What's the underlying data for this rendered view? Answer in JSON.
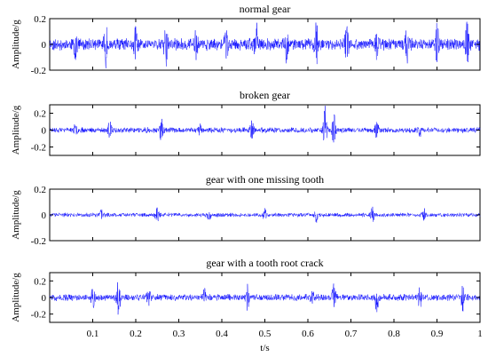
{
  "chart_data": [
    {
      "type": "line",
      "title": "normal gear",
      "xlabel": "",
      "ylabel": "Amplitude/g",
      "xlim": [
        0,
        1
      ],
      "ylim": [
        -0.2,
        0.2
      ],
      "yticks": [
        "0.2",
        "0",
        "-0.2"
      ],
      "xticks": [],
      "color": "#0000ff",
      "signal": {
        "samples": 1600,
        "base_amplitude": 0.05,
        "seed": 11,
        "events": [
          {
            "t": 0.06,
            "amp": 0.13
          },
          {
            "t": 0.13,
            "amp": 0.15
          },
          {
            "t": 0.2,
            "amp": 0.12
          },
          {
            "t": 0.27,
            "amp": 0.16
          },
          {
            "t": 0.34,
            "amp": 0.12
          },
          {
            "t": 0.41,
            "amp": 0.13
          },
          {
            "t": 0.48,
            "amp": 0.14
          },
          {
            "t": 0.55,
            "amp": 0.12
          },
          {
            "t": 0.62,
            "amp": 0.16
          },
          {
            "t": 0.69,
            "amp": 0.13
          },
          {
            "t": 0.76,
            "amp": 0.14
          },
          {
            "t": 0.83,
            "amp": 0.12
          },
          {
            "t": 0.9,
            "amp": 0.14
          },
          {
            "t": 0.97,
            "amp": 0.16
          }
        ]
      }
    },
    {
      "type": "line",
      "title": "broken gear",
      "xlabel": "",
      "ylabel": "Amplitude/g",
      "xlim": [
        0,
        1
      ],
      "ylim": [
        -0.3,
        0.3
      ],
      "yticks": [
        "0.2",
        "0",
        "-0.2"
      ],
      "xticks": [],
      "color": "#0000ff",
      "signal": {
        "samples": 1600,
        "base_amplitude": 0.035,
        "seed": 23,
        "events": [
          {
            "t": 0.06,
            "amp": 0.06
          },
          {
            "t": 0.14,
            "amp": 0.12
          },
          {
            "t": 0.26,
            "amp": 0.14
          },
          {
            "t": 0.35,
            "amp": 0.06
          },
          {
            "t": 0.47,
            "amp": 0.1
          },
          {
            "t": 0.64,
            "amp": 0.28
          },
          {
            "t": 0.66,
            "amp": 0.2
          },
          {
            "t": 0.76,
            "amp": 0.1
          },
          {
            "t": 0.86,
            "amp": 0.08
          }
        ]
      }
    },
    {
      "type": "line",
      "title": "gear with one missing tooth",
      "xlabel": "",
      "ylabel": "Amplitude/g",
      "xlim": [
        0,
        1
      ],
      "ylim": [
        -0.2,
        0.2
      ],
      "yticks": [
        "0.2",
        "0",
        "-0.2"
      ],
      "xticks": [],
      "color": "#0000ff",
      "signal": {
        "samples": 1600,
        "base_amplitude": 0.018,
        "seed": 37,
        "events": [
          {
            "t": 0.12,
            "amp": 0.04
          },
          {
            "t": 0.25,
            "amp": 0.06
          },
          {
            "t": 0.37,
            "amp": 0.04
          },
          {
            "t": 0.5,
            "amp": 0.04
          },
          {
            "t": 0.62,
            "amp": 0.05
          },
          {
            "t": 0.75,
            "amp": 0.06
          },
          {
            "t": 0.87,
            "amp": 0.04
          }
        ]
      }
    },
    {
      "type": "line",
      "title": "gear with a tooth root crack",
      "xlabel": "t/s",
      "ylabel": "Amplitude/g",
      "xlim": [
        0,
        1
      ],
      "ylim": [
        -0.3,
        0.3
      ],
      "yticks": [
        "0.2",
        "0",
        "-0.2"
      ],
      "xticks": [
        "0.1",
        "0.2",
        "0.3",
        "0.4",
        "0.5",
        "0.6",
        "0.7",
        "0.8",
        "0.9",
        "1"
      ],
      "color": "#0000ff",
      "signal": {
        "samples": 1600,
        "base_amplitude": 0.045,
        "seed": 51,
        "events": [
          {
            "t": 0.1,
            "amp": 0.14
          },
          {
            "t": 0.16,
            "amp": 0.24
          },
          {
            "t": 0.23,
            "amp": 0.1
          },
          {
            "t": 0.36,
            "amp": 0.12
          },
          {
            "t": 0.46,
            "amp": 0.14
          },
          {
            "t": 0.61,
            "amp": 0.1
          },
          {
            "t": 0.66,
            "amp": 0.14
          },
          {
            "t": 0.76,
            "amp": 0.16
          },
          {
            "t": 0.86,
            "amp": 0.12
          },
          {
            "t": 0.96,
            "amp": 0.14
          }
        ]
      }
    }
  ]
}
